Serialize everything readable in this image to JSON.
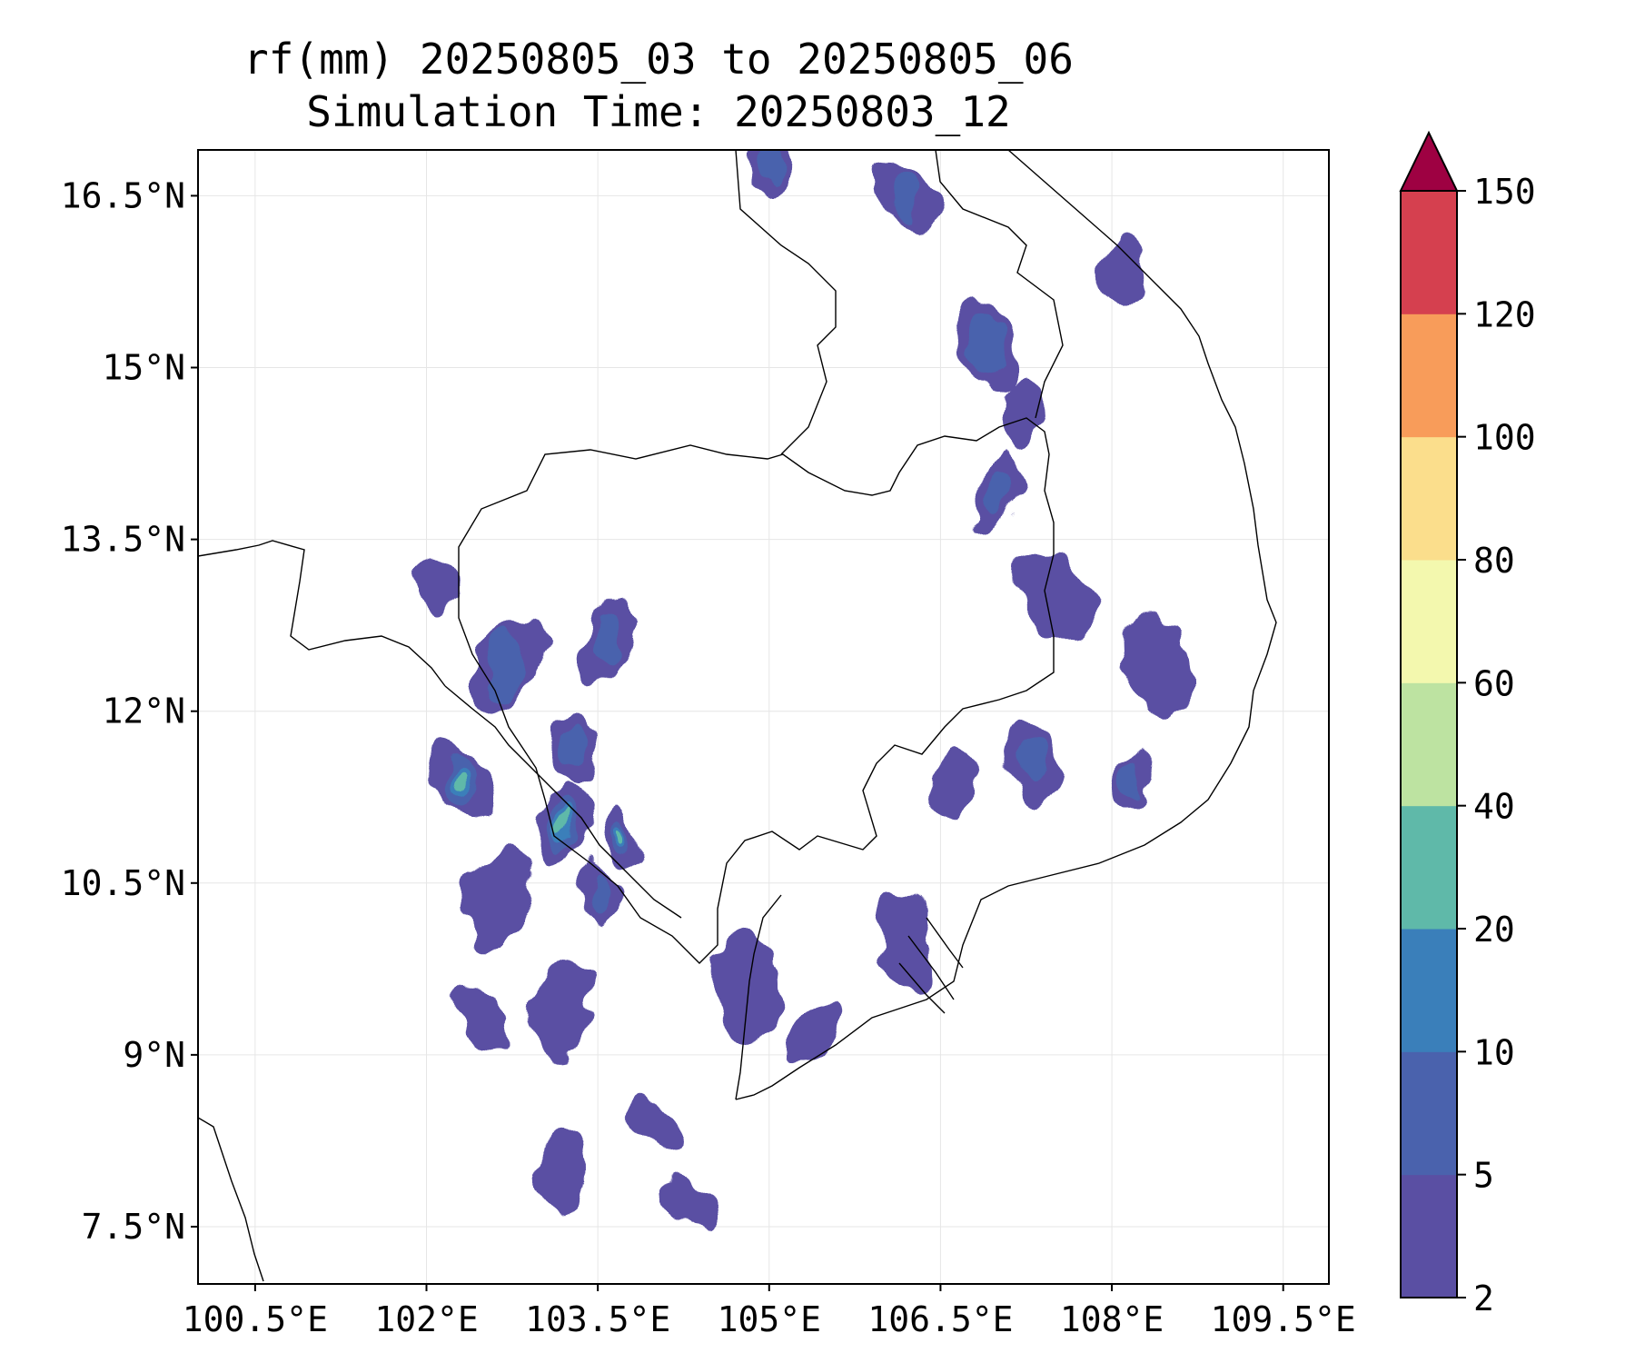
{
  "title": {
    "line1": "rf(mm) 20250805_03 to 20250805_06",
    "line2": "Simulation Time: 20250803_12"
  },
  "map": {
    "lon_range": [
      100.0,
      109.9
    ],
    "lat_range": [
      7.0,
      16.9
    ],
    "lon_ticks": [
      "100.5°E",
      "102°E",
      "103.5°E",
      "105°E",
      "106.5°E",
      "108°E",
      "109.5°E"
    ],
    "lon_tick_values": [
      100.5,
      102.0,
      103.5,
      105.0,
      106.5,
      108.0,
      109.5
    ],
    "lat_ticks": [
      "16.5°N",
      "15°N",
      "13.5°N",
      "12°N",
      "10.5°N",
      "9°N",
      "7.5°N"
    ],
    "lat_tick_values": [
      16.5,
      15.0,
      13.5,
      12.0,
      10.5,
      9.0,
      7.5
    ],
    "grid": true,
    "coastline_color": "#000000"
  },
  "colorbar": {
    "levels": [
      2,
      5,
      10,
      20,
      40,
      60,
      80,
      100,
      120,
      150
    ],
    "tick_labels": [
      "2",
      "5",
      "10",
      "20",
      "40",
      "60",
      "80",
      "100",
      "120",
      "150"
    ],
    "colors": [
      "#5a4fa3",
      "#4a62ad",
      "#3a7fba",
      "#5fb9a9",
      "#bde3a1",
      "#f3f8ae",
      "#fbde8c",
      "#f89c5a",
      "#d5404f"
    ],
    "extend_color": "#9e0142",
    "extend": "max"
  },
  "chart_data": {
    "type": "heatmap",
    "title": "rf(mm) 20250805_03 to 20250805_06",
    "subtitle": "Simulation Time: 20250803_12",
    "xlabel": "",
    "ylabel": "",
    "xlim": [
      100.0,
      109.9
    ],
    "ylim": [
      7.0,
      16.9
    ],
    "units": "mm",
    "rain_areas": [
      {
        "lon": 102.3,
        "lat": 11.4,
        "value": 20
      },
      {
        "lon": 102.1,
        "lat": 13.1,
        "value": 5
      },
      {
        "lon": 102.7,
        "lat": 12.4,
        "value": 10
      },
      {
        "lon": 103.3,
        "lat": 11.7,
        "value": 10
      },
      {
        "lon": 103.6,
        "lat": 12.6,
        "value": 10
      },
      {
        "lon": 103.7,
        "lat": 10.9,
        "value": 20
      },
      {
        "lon": 103.2,
        "lat": 11.0,
        "value": 20
      },
      {
        "lon": 103.5,
        "lat": 10.4,
        "value": 10
      },
      {
        "lon": 102.6,
        "lat": 10.4,
        "value": 5
      },
      {
        "lon": 102.5,
        "lat": 9.3,
        "value": 5
      },
      {
        "lon": 103.2,
        "lat": 9.4,
        "value": 5
      },
      {
        "lon": 104.0,
        "lat": 8.4,
        "value": 5
      },
      {
        "lon": 103.2,
        "lat": 8.0,
        "value": 5
      },
      {
        "lon": 104.3,
        "lat": 7.7,
        "value": 5
      },
      {
        "lon": 104.8,
        "lat": 9.6,
        "value": 5
      },
      {
        "lon": 105.4,
        "lat": 9.2,
        "value": 5
      },
      {
        "lon": 106.2,
        "lat": 10.0,
        "value": 5
      },
      {
        "lon": 106.6,
        "lat": 11.4,
        "value": 5
      },
      {
        "lon": 107.3,
        "lat": 11.6,
        "value": 10
      },
      {
        "lon": 108.2,
        "lat": 11.4,
        "value": 10
      },
      {
        "lon": 108.4,
        "lat": 12.4,
        "value": 5
      },
      {
        "lon": 107.0,
        "lat": 13.9,
        "value": 10
      },
      {
        "lon": 106.9,
        "lat": 15.2,
        "value": 10
      },
      {
        "lon": 107.2,
        "lat": 14.6,
        "value": 5
      },
      {
        "lon": 106.2,
        "lat": 16.5,
        "value": 10
      },
      {
        "lon": 105.0,
        "lat": 16.8,
        "value": 10
      },
      {
        "lon": 107.5,
        "lat": 13.0,
        "value": 5
      },
      {
        "lon": 108.1,
        "lat": 15.8,
        "value": 5
      }
    ]
  }
}
